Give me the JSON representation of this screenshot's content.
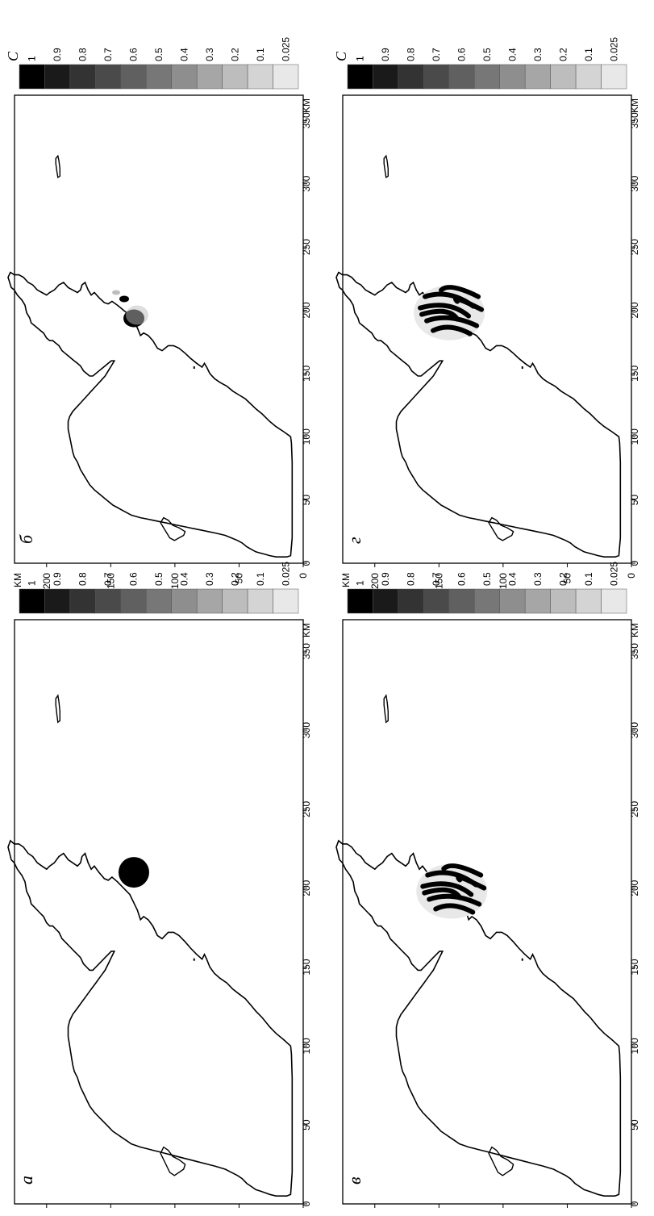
{
  "figure": {
    "axis_unit_x": "KM",
    "axis_unit_y": "KM",
    "x_ticks": [
      "0",
      "50",
      "100",
      "150",
      "200",
      "250",
      "300",
      "350"
    ],
    "y_ticks": [
      "0",
      "50",
      "100",
      "150",
      "200"
    ],
    "x_range_km": [
      0,
      370
    ],
    "y_range_km": [
      0,
      225
    ],
    "colorbar": {
      "title": "C",
      "levels": [
        "1",
        "0.9",
        "0.8",
        "0.7",
        "0.6",
        "0.5",
        "0.4",
        "0.3",
        "0.2",
        "0.1",
        "0.025"
      ],
      "colors": [
        "#000000",
        "#1a1a1a",
        "#333333",
        "#4a4a4a",
        "#606060",
        "#777777",
        "#8e8e8e",
        "#a6a6a6",
        "#bdbdbd",
        "#d4d4d4",
        "#e8e8e8"
      ]
    }
  },
  "panels": [
    {
      "id": "a",
      "label": "a",
      "show_legend_title": false,
      "spill": "round-blob",
      "spill_center_km": [
        210,
        132
      ]
    },
    {
      "id": "b",
      "label": "б",
      "show_legend_title": true,
      "spill": "small-patches",
      "spill_center_km": [
        200,
        137
      ]
    },
    {
      "id": "v",
      "label": "в",
      "show_legend_title": false,
      "spill": "striped-large",
      "spill_center_km": [
        198,
        140
      ]
    },
    {
      "id": "g",
      "label": "г",
      "show_legend_title": true,
      "spill": "striped-large",
      "spill_center_km": [
        198,
        142
      ]
    }
  ]
}
